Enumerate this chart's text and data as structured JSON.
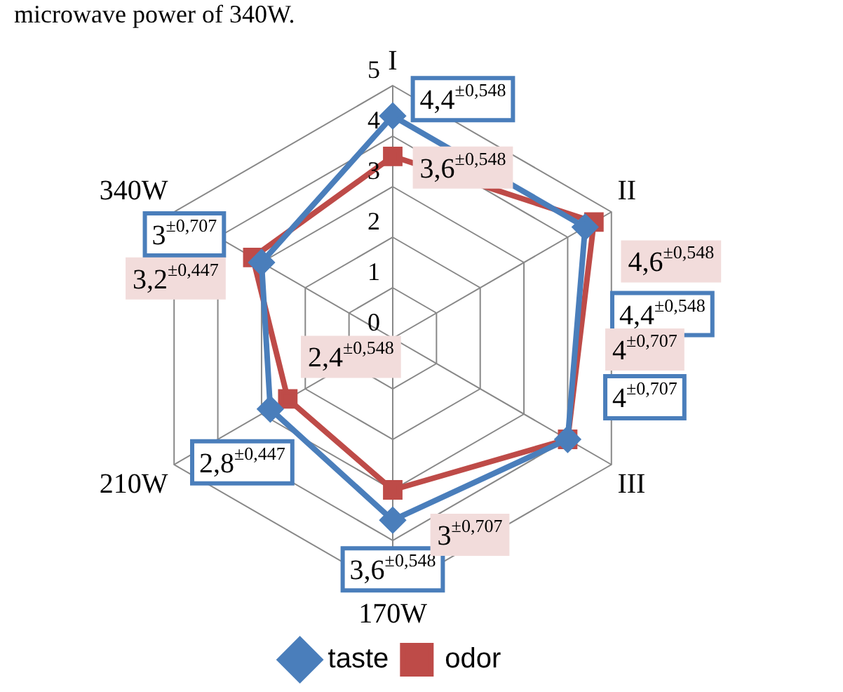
{
  "chart_data": {
    "type": "radar",
    "annotations": [
      "microwave power of 340W."
    ],
    "categories": [
      "I",
      "II",
      "III",
      "170W",
      "210W",
      "340W"
    ],
    "ylim": [
      0,
      5
    ],
    "yticks": [
      0,
      1,
      2,
      3,
      4,
      5
    ],
    "grid": true,
    "legend": "bottom",
    "series": [
      {
        "name": "taste",
        "color": "#4a7ebb",
        "marker": "diamond",
        "values": [
          4.4,
          4.4,
          4,
          3.6,
          2.8,
          3
        ],
        "value_labels": [
          "4,4$^{±0,548}$",
          "4,4$^{±0,548}$",
          "4$^{±0,707}$",
          "3,6$^{±0,548}$",
          "2,8$^{±0,447}$",
          "3$^{±0,707}$"
        ]
      },
      {
        "name": "odor",
        "color": "#be4b48",
        "marker": "square",
        "values": [
          3.6,
          4.6,
          4,
          3,
          2.4,
          3.2
        ],
        "value_labels": [
          "3,6$^{±0,548}$",
          "4,6$^{±0,548}$",
          "4$^{±0,707}$",
          "3$^{±0,707}$",
          "2,4$^{±0,548}$",
          "3,2$^{±0,447}$"
        ]
      }
    ]
  }
}
